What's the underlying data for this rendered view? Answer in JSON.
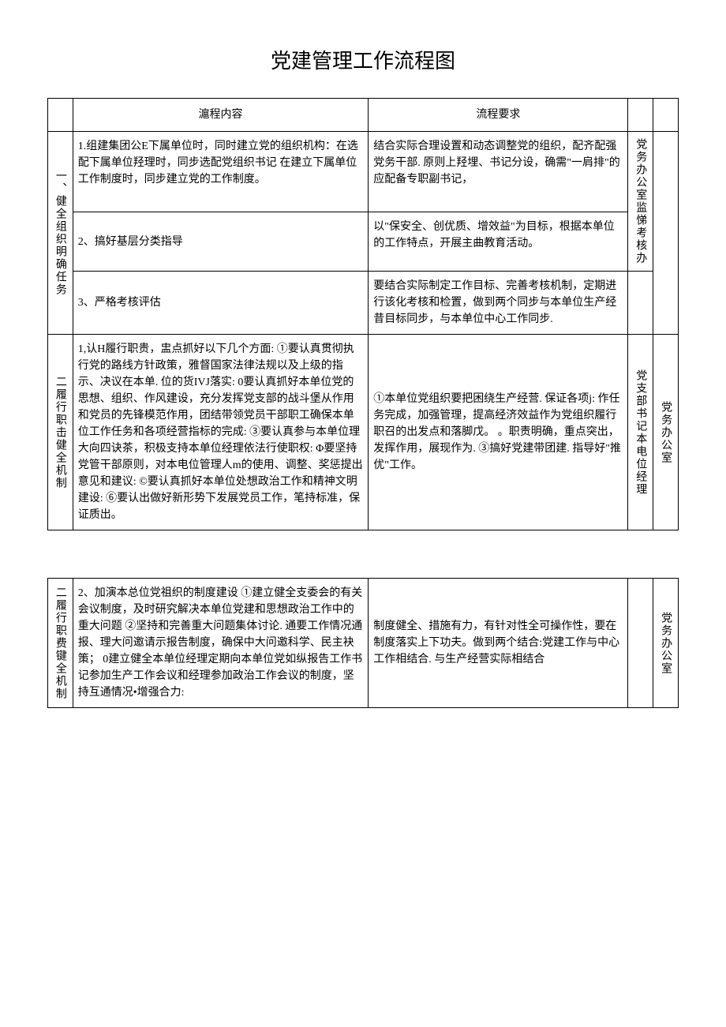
{
  "title": "党建管理工作流程图",
  "headers": {
    "col2": "滬程内容",
    "col3": "流程要求"
  },
  "sections": {
    "s1": {
      "label": "一、健全组织明确任务",
      "resp1": "党务办公室监悌考核办",
      "rows": [
        {
          "content": "1.组建集团公E下属单位时，同时建立党的组织机构：在选配下属单位羟理时，同步选配党组织书记 在建立下属单位工作制度时，同步建立党的工作制度。",
          "req": "结合实际合理设置和动态调整党的组织，配齐配强党务干部.\n原则上羟埋、书记分设，确需\"一肩排\"的应配备专职副书记，"
        },
        {
          "content": "2、搞好基层分类指导",
          "req": "以\"保安全、创优质、增效益\"为目标，根据本单位的工作特点，开展主曲教育活动。"
        },
        {
          "content": "3、严格考核评估",
          "req": "要结合实际制定工作目标、完善考核机制，定期进行该化考核和检置，做到两个同步与本单位生产经昔目标同步，与本单位中心工作同步."
        }
      ]
    },
    "s2": {
      "label": "二履行职击健全机制",
      "resp1": "党支部书记本电位经理",
      "resp2": "党务办公室",
      "rows": [
        {
          "content": "1,认H履行职贵，盅点抓好以下几个方面:\n①要认真贯彻执行党的路线方针政策，雅督国家法律法规以及上级的指示、决议在本单. 位的货IVJ落实:\n0要认真抓好本单位党的思想、组织、作风建设，充分发挥党支部的战斗堡从作用和党员的先锋模范作用，团结带领党员干部职工确保本单位工作任务和各项经营指标的完成:\n③要认真参与本单位理大向四诀茶，积极支持本单位经理依法行使职权:\nΦ要坚持党管干部原则，对本电位管理人m的使用、调整、奖惩提出意见和建议:\n©要认真抓好本单位处想政治工作和精神文明建设:\n⑥要认出做好新形势下发展党员工作，笔持标准，保证质出。",
          "req": "①本单位党组织要把困绕生产经营. 保证各项j: 作任务完成，加强管理，提高经济效益作为党组织履行职召的出发点和落脚戊。\n。职责明确，重点突出，发挥作用，展现作为.\n③搞好党建带团建. 指导好\"推优\"工作。"
        }
      ]
    },
    "s3": {
      "label": "二履行职费键全机制",
      "resp2": "党务办公室",
      "rows": [
        {
          "content": "    2、加演本总位党祖织的制度建设\n①建立健全支委会的有关会议制度，及时研究解决本单位党建和思想政治工作中的重大问题 ②坚持和完善重大问题集体讨论. 通要工作情况通报、理大问邀请示报告制度，确保中大问邀科学、民主袂策；\n0建立健全本单位经理定期向本单位党如纵报告工作书记参加生产工作会议和经理参加政治工作会议的制度，坚持互通情况•增强合力:",
          "req": "制度健全、措施有力，有针对性全可操作性，要在制度落实上下功夫。做到两个结合:党建工作与中心工作相结合. 与生产经营实际相结合"
        }
      ]
    }
  }
}
